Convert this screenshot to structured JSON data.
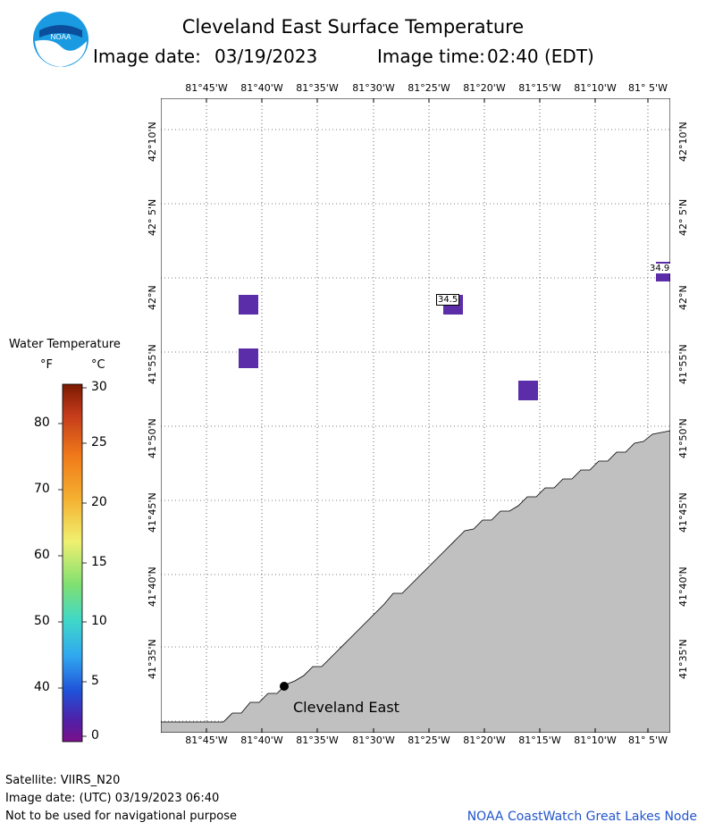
{
  "header": {
    "title": "Cleveland East Surface Temperature",
    "image_date_label": "Image date:",
    "image_date": "03/19/2023",
    "image_time_label": "Image time:",
    "image_time": "02:40 (EDT)",
    "logo_text": "NOAA"
  },
  "map": {
    "lon_ticks": [
      "81°45'W",
      "81°40'W",
      "81°35'W",
      "81°30'W",
      "81°25'W",
      "81°20'W",
      "81°15'W",
      "81°10'W",
      "81° 5'W"
    ],
    "lat_ticks": [
      "42°10'N",
      "42° 5'N",
      "42°N",
      "41°55'N",
      "41°50'N",
      "41°45'N",
      "41°40'N",
      "41°35'N"
    ],
    "land_color": "#c0c0c0",
    "water_color": "#ffffff",
    "pixel_color": "#5b2da8",
    "temp_labels": [
      {
        "text": "34.5"
      },
      {
        "text": "34.9"
      }
    ],
    "station": {
      "name": "Cleveland East"
    }
  },
  "legend": {
    "title": "Water Temperature",
    "unit_f": "°F",
    "unit_c": "°C",
    "f_ticks": [
      "80",
      "70",
      "60",
      "50",
      "40"
    ],
    "c_ticks": [
      "30",
      "25",
      "20",
      "15",
      "10",
      "5",
      "0"
    ]
  },
  "footer": {
    "satellite": "Satellite: VIIRS_N20",
    "utc_date": "Image date: (UTC) 03/19/2023  06:40",
    "disclaimer": "Not to be used for navigational purpose",
    "node": "NOAA CoastWatch Great Lakes Node"
  }
}
